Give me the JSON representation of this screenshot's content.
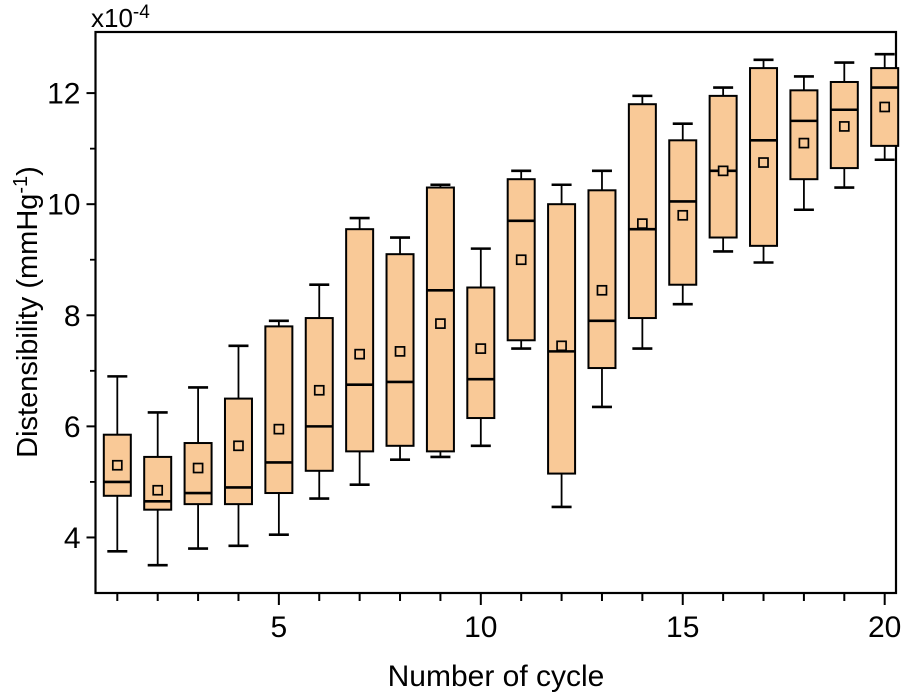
{
  "figure": {
    "scale_label": {
      "base": "x10",
      "exponent": "-4"
    },
    "x_axis": {
      "title": "Number of cycle"
    },
    "y_axis": {
      "title_main": "Distensibility (mmHg",
      "title_sup": "-1",
      "title_close": ")"
    }
  },
  "chart_data": {
    "type": "box",
    "title": "",
    "xlabel": "Number of cycle",
    "ylabel": "Distensibility (mmHg^-1)",
    "y_scale_factor": "x10^-4",
    "grid": false,
    "legend": false,
    "xlim": [
      0.46,
      20.28
    ],
    "ylim": [
      3.0,
      13.1
    ],
    "x_major_ticks": [
      5,
      10,
      15,
      20
    ],
    "x_major_tick_labels": [
      "5",
      "10",
      "15",
      "20"
    ],
    "y_major_ticks": [
      4,
      6,
      8,
      10,
      12
    ],
    "y_major_tick_labels": [
      "4",
      "6",
      "8",
      "10",
      "12"
    ],
    "y_minor_ticks": [
      5,
      7,
      9,
      11
    ],
    "colors": {
      "box_fill": "#F9C997",
      "stroke": "#000000",
      "background": "#FFFFFF"
    },
    "boxes": [
      {
        "cycle": 1,
        "whisker_low": 3.75,
        "q1": 4.75,
        "median": 5.0,
        "q3": 5.85,
        "whisker_high": 6.9,
        "mean": 5.3
      },
      {
        "cycle": 2,
        "whisker_low": 3.5,
        "q1": 4.5,
        "median": 4.65,
        "q3": 5.45,
        "whisker_high": 6.25,
        "mean": 4.85
      },
      {
        "cycle": 3,
        "whisker_low": 3.8,
        "q1": 4.6,
        "median": 4.8,
        "q3": 5.7,
        "whisker_high": 6.7,
        "mean": 5.25
      },
      {
        "cycle": 4,
        "whisker_low": 3.85,
        "q1": 4.6,
        "median": 4.9,
        "q3": 6.5,
        "whisker_high": 7.45,
        "mean": 5.65
      },
      {
        "cycle": 5,
        "whisker_low": 4.05,
        "q1": 4.8,
        "median": 5.35,
        "q3": 7.8,
        "whisker_high": 7.9,
        "mean": 5.95
      },
      {
        "cycle": 6,
        "whisker_low": 4.7,
        "q1": 5.2,
        "median": 6.0,
        "q3": 7.95,
        "whisker_high": 8.55,
        "mean": 6.65
      },
      {
        "cycle": 7,
        "whisker_low": 4.95,
        "q1": 5.55,
        "median": 6.75,
        "q3": 9.55,
        "whisker_high": 9.75,
        "mean": 7.3
      },
      {
        "cycle": 8,
        "whisker_low": 5.4,
        "q1": 5.65,
        "median": 6.8,
        "q3": 9.1,
        "whisker_high": 9.4,
        "mean": 7.35
      },
      {
        "cycle": 9,
        "whisker_low": 5.45,
        "q1": 5.55,
        "median": 8.45,
        "q3": 10.3,
        "whisker_high": 10.35,
        "mean": 7.85
      },
      {
        "cycle": 10,
        "whisker_low": 5.65,
        "q1": 6.15,
        "median": 6.85,
        "q3": 8.5,
        "whisker_high": 9.2,
        "mean": 7.4
      },
      {
        "cycle": 11,
        "whisker_low": 7.4,
        "q1": 7.55,
        "median": 9.7,
        "q3": 10.45,
        "whisker_high": 10.6,
        "mean": 9.0
      },
      {
        "cycle": 12,
        "whisker_low": 4.55,
        "q1": 5.15,
        "median": 7.35,
        "q3": 10.0,
        "whisker_high": 10.35,
        "mean": 7.45
      },
      {
        "cycle": 13,
        "whisker_low": 6.35,
        "q1": 7.05,
        "median": 7.9,
        "q3": 10.25,
        "whisker_high": 10.6,
        "mean": 8.45
      },
      {
        "cycle": 14,
        "whisker_low": 7.4,
        "q1": 7.95,
        "median": 9.55,
        "q3": 11.8,
        "whisker_high": 11.95,
        "mean": 9.65
      },
      {
        "cycle": 15,
        "whisker_low": 8.2,
        "q1": 8.55,
        "median": 10.05,
        "q3": 11.15,
        "whisker_high": 11.45,
        "mean": 9.8
      },
      {
        "cycle": 16,
        "whisker_low": 9.15,
        "q1": 9.4,
        "median": 10.6,
        "q3": 11.95,
        "whisker_high": 12.1,
        "mean": 10.6
      },
      {
        "cycle": 17,
        "whisker_low": 8.95,
        "q1": 9.25,
        "median": 11.15,
        "q3": 12.45,
        "whisker_high": 12.6,
        "mean": 10.75
      },
      {
        "cycle": 18,
        "whisker_low": 9.9,
        "q1": 10.45,
        "median": 11.5,
        "q3": 12.05,
        "whisker_high": 12.3,
        "mean": 11.1
      },
      {
        "cycle": 19,
        "whisker_low": 10.3,
        "q1": 10.65,
        "median": 11.7,
        "q3": 12.2,
        "whisker_high": 12.55,
        "mean": 11.4
      },
      {
        "cycle": 20,
        "whisker_low": 10.8,
        "q1": 11.05,
        "median": 12.1,
        "q3": 12.45,
        "whisker_high": 12.7,
        "mean": 11.75
      }
    ]
  }
}
